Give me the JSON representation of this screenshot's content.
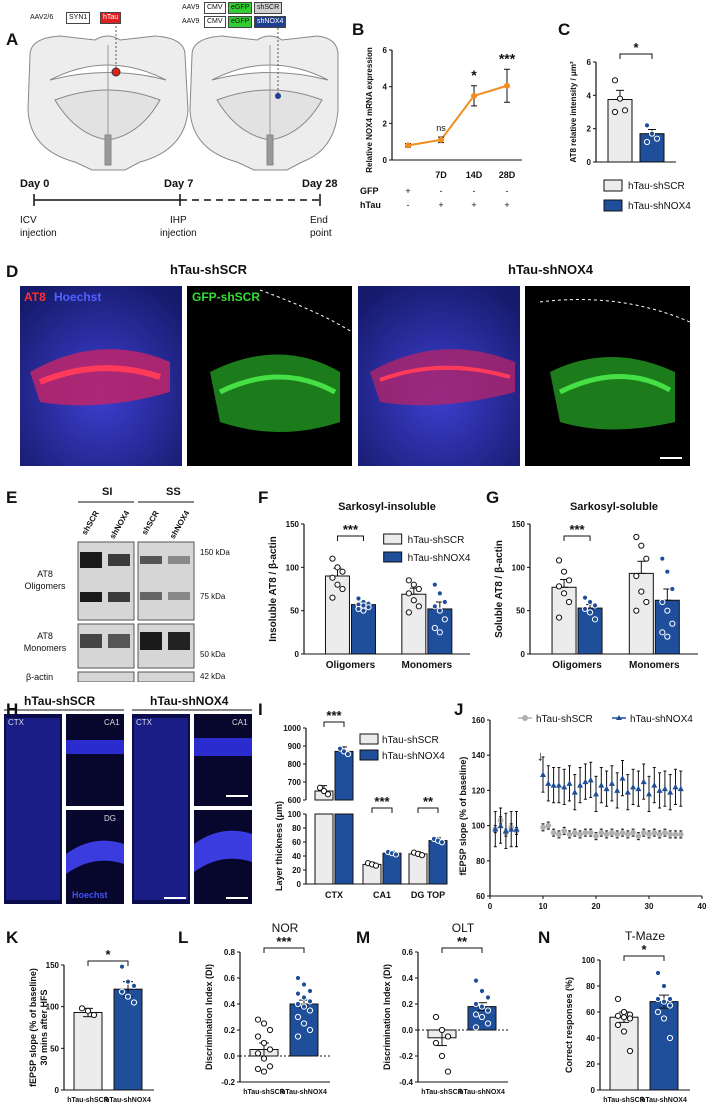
{
  "panels": {
    "A": {
      "letter": "A",
      "construct_left": {
        "vector": "AAV2/6",
        "promoter": "SYN1",
        "gene": "hTau"
      },
      "construct_right_1": {
        "vector": "AAV9",
        "promoter": "CMV",
        "reporter": "eGFP",
        "shrna": "shSCR"
      },
      "construct_right_2": {
        "vector": "AAV9",
        "promoter": "CMV",
        "reporter": "eGFP",
        "shrna": "shNOX4"
      },
      "timeline": [
        {
          "day": "Day 0",
          "event": "ICV\ninjection"
        },
        {
          "day": "Day 7",
          "event": "IHP\ninjection"
        },
        {
          "day": "Day 28",
          "event": "End\npoint"
        }
      ],
      "colors": {
        "htau": "#e02020",
        "gfp": "#33cc33",
        "shnox4": "#1f3f8f",
        "shscr": "#d0d0d0"
      }
    },
    "B": {
      "letter": "B"
    },
    "C": {
      "letter": "C"
    },
    "D": {
      "letter": "D",
      "group1": "hTau-shSCR",
      "group2": "hTau-shNOX4",
      "img1_label_a": "AT8",
      "img1_label_b": "Hoechst",
      "img2_label": "GFP-shSCR"
    },
    "E": {
      "letter": "E",
      "header_si": "SI",
      "header_ss": "SS",
      "lanes": [
        "shSCR",
        "shNOX4",
        "shSCR",
        "shNOX4"
      ],
      "row_labels": [
        "AT8\nOligomers",
        "AT8\nMonomers",
        "β-actin"
      ],
      "kda": [
        "150 kDa",
        "75 kDa",
        "50 kDa",
        "42 kDa"
      ]
    },
    "F": {
      "letter": "F"
    },
    "G": {
      "letter": "G"
    },
    "H": {
      "letter": "H",
      "group1": "hTau-shSCR",
      "group2": "hTau-shNOX4",
      "regions": [
        "CTX",
        "CA1",
        "DG"
      ],
      "stain": "Hoechst"
    },
    "I": {
      "letter": "I"
    },
    "J": {
      "letter": "J"
    },
    "K": {
      "letter": "K"
    },
    "L": {
      "letter": "L"
    },
    "M": {
      "letter": "M"
    },
    "N": {
      "letter": "N"
    }
  },
  "chart_data": [
    {
      "id": "B",
      "type": "line",
      "ylabel": "Relative NOX4 mRNA expression",
      "ylim": [
        0,
        6
      ],
      "yticks": [
        0,
        2,
        4,
        6
      ],
      "x": [
        "",
        "7D",
        "14D",
        "28D"
      ],
      "values": [
        0.8,
        1.1,
        3.5,
        4.05
      ],
      "errors": [
        0.1,
        0.15,
        0.55,
        0.9
      ],
      "significance": [
        "",
        "ns",
        "*",
        "***"
      ],
      "rows": [
        {
          "name": "GFP",
          "marks": [
            "+",
            "-",
            "-",
            "-"
          ]
        },
        {
          "name": "hTau",
          "marks": [
            "-",
            "+",
            "+",
            "+"
          ]
        }
      ],
      "color": "#f28c1e"
    },
    {
      "id": "C",
      "type": "bar",
      "ylabel": "AT8 relative intensity / μm²",
      "ylim": [
        0,
        6
      ],
      "yticks": [
        0,
        2,
        4,
        6
      ],
      "categories": [
        "hTau-shSCR",
        "hTau-shNOX4"
      ],
      "values": [
        3.75,
        1.7
      ],
      "errors": [
        0.55,
        0.25
      ],
      "points": [
        [
          4.9,
          3.8,
          3.1,
          3.0
        ],
        [
          2.2,
          1.7,
          1.4,
          1.2
        ]
      ],
      "significance": "*",
      "legend": [
        "hTau-shSCR",
        "hTau-shNOX4"
      ]
    },
    {
      "id": "F",
      "type": "bar",
      "title": "Sarkosyl-insoluble",
      "ylabel": "Insoluble AT8 / β-actin",
      "ylim": [
        0,
        150
      ],
      "yticks": [
        0,
        50,
        100,
        150
      ],
      "categories": [
        "Oligomers",
        "Monomers"
      ],
      "series": [
        {
          "name": "hTau-shSCR",
          "values": [
            90,
            69
          ],
          "errors": [
            9,
            7
          ],
          "points": [
            [
              110,
              100,
              95,
              88,
              80,
              75,
              65
            ],
            [
              85,
              80,
              75,
              70,
              62,
              55,
              48
            ]
          ]
        },
        {
          "name": "hTau-shNOX4",
          "values": [
            57,
            52
          ],
          "errors": [
            3,
            8
          ],
          "points": [
            [
              64,
              60,
              58,
              57,
              56,
              54,
              52,
              50
            ],
            [
              80,
              70,
              60,
              55,
              50,
              40,
              30,
              25
            ]
          ]
        }
      ],
      "significance": [
        {
          "category": "Oligomers",
          "label": "***"
        }
      ]
    },
    {
      "id": "G",
      "type": "bar",
      "title": "Sarkosyl-soluble",
      "ylabel": "Soluble AT8 / β-actin",
      "ylim": [
        0,
        150
      ],
      "yticks": [
        0,
        50,
        100,
        150
      ],
      "categories": [
        "Oligomers",
        "Monomers"
      ],
      "series": [
        {
          "name": "hTau-shSCR",
          "values": [
            77,
            93
          ],
          "errors": [
            9,
            14
          ],
          "points": [
            [
              108,
              95,
              85,
              78,
              70,
              60,
              42
            ],
            [
              135,
              125,
              110,
              90,
              72,
              60,
              50
            ]
          ]
        },
        {
          "name": "hTau-shNOX4",
          "values": [
            53,
            62
          ],
          "errors": [
            4,
            13
          ],
          "points": [
            [
              65,
              60,
              56,
              52,
              48,
              40
            ],
            [
              110,
              95,
              75,
              60,
              50,
              35,
              25,
              20
            ]
          ]
        }
      ],
      "significance": [
        {
          "category": "Oligomers",
          "label": "***"
        }
      ]
    },
    {
      "id": "I",
      "type": "bar",
      "ylabel": "Layer thickness (μm)",
      "ylim_upper": [
        600,
        1000
      ],
      "yticks_upper": [
        600,
        700,
        800,
        900,
        1000
      ],
      "ylim_lower": [
        0,
        100
      ],
      "yticks_lower": [
        0,
        20,
        40,
        60,
        80,
        100
      ],
      "categories": [
        "CTX",
        "CA1",
        "DG TOP"
      ],
      "series": [
        {
          "name": "hTau-shSCR",
          "values": [
            650,
            28,
            43
          ],
          "errors": [
            30,
            3,
            3
          ]
        },
        {
          "name": "hTau-shNOX4",
          "values": [
            870,
            44,
            62
          ],
          "errors": [
            25,
            3,
            4
          ]
        }
      ],
      "significance": [
        "***",
        "***",
        "**"
      ]
    },
    {
      "id": "J",
      "type": "scatter",
      "ylabel": "fEPSP slope (% of baseline)",
      "xlim": [
        0,
        40
      ],
      "ylim": [
        60,
        160
      ],
      "xticks": [
        0,
        10,
        20,
        30,
        40
      ],
      "yticks": [
        60,
        80,
        100,
        120,
        140,
        160
      ],
      "series": [
        {
          "name": "hTau-shSCR",
          "color": "#b0b0b0",
          "x": [
            1,
            2,
            3,
            4,
            5,
            10,
            11,
            12,
            13,
            14,
            15,
            16,
            17,
            18,
            19,
            20,
            21,
            22,
            23,
            24,
            25,
            26,
            27,
            28,
            29,
            30,
            31,
            32,
            33,
            34,
            35,
            36
          ],
          "y": [
            98,
            103,
            96,
            99,
            97,
            99,
            100,
            96,
            95,
            97,
            95,
            96,
            95,
            96,
            96,
            94,
            96,
            95,
            96,
            95,
            96,
            95,
            96,
            94,
            96,
            95,
            96,
            95,
            96,
            95,
            95,
            95
          ]
        },
        {
          "name": "hTau-shNOX4",
          "color": "#1f4e9a",
          "x": [
            1,
            2,
            3,
            4,
            5,
            10,
            11,
            12,
            13,
            14,
            15,
            16,
            17,
            18,
            19,
            20,
            21,
            22,
            23,
            24,
            25,
            26,
            27,
            28,
            29,
            30,
            31,
            32,
            33,
            34,
            35,
            36
          ],
          "y": [
            98,
            100,
            97,
            98,
            98,
            129,
            124,
            123,
            123,
            122,
            124,
            119,
            123,
            125,
            126,
            118,
            123,
            121,
            124,
            120,
            127,
            119,
            122,
            121,
            125,
            118,
            123,
            120,
            121,
            119,
            122,
            121
          ]
        }
      ],
      "annotation": "↓"
    },
    {
      "id": "K",
      "type": "bar",
      "ylabel": "fEPSP slope (% of baseline)\n30 mins after HFS",
      "ylim": [
        0,
        150
      ],
      "yticks": [
        0,
        50,
        100,
        150
      ],
      "categories": [
        "hTau-shSCR",
        "hTau-shNOX4"
      ],
      "values": [
        93,
        121
      ],
      "errors": [
        5,
        9
      ],
      "points": [
        [
          98,
          95,
          90
        ],
        [
          148,
          130,
          125,
          118,
          112,
          105
        ]
      ],
      "significance": "*"
    },
    {
      "id": "L",
      "type": "bar",
      "title": "NOR",
      "ylabel": "Discrimination Index (DI)",
      "ylim": [
        -0.2,
        0.8
      ],
      "yticks": [
        -0.2,
        0.0,
        0.2,
        0.4,
        0.6,
        0.8
      ],
      "categories": [
        "hTau-shSCR",
        "hTau-shNOX4"
      ],
      "values": [
        0.05,
        0.4
      ],
      "errors": [
        0.05,
        0.03
      ],
      "points": [
        [
          0.28,
          0.25,
          0.2,
          0.15,
          0.1,
          0.05,
          0.02,
          -0.02,
          -0.08,
          -0.1,
          -0.12
        ],
        [
          0.6,
          0.55,
          0.5,
          0.48,
          0.45,
          0.42,
          0.4,
          0.38,
          0.35,
          0.3,
          0.25,
          0.2,
          0.15
        ]
      ],
      "significance": "***"
    },
    {
      "id": "M",
      "type": "bar",
      "title": "OLT",
      "ylabel": "Discrimination Index (DI)",
      "ylim": [
        -0.4,
        0.6
      ],
      "yticks": [
        -0.4,
        -0.2,
        0.0,
        0.2,
        0.4,
        0.6
      ],
      "categories": [
        "hTau-shSCR",
        "hTau-shNOX4"
      ],
      "values": [
        -0.06,
        0.18
      ],
      "errors": [
        0.06,
        0.03
      ],
      "points": [
        [
          0.1,
          0.0,
          -0.05,
          -0.1,
          -0.2,
          -0.32
        ],
        [
          0.38,
          0.3,
          0.25,
          0.2,
          0.18,
          0.15,
          0.12,
          0.1,
          0.05,
          0.02
        ]
      ],
      "significance": "**"
    },
    {
      "id": "N",
      "type": "bar",
      "title": "T-Maze",
      "ylabel": "Correct responses (%)",
      "ylim": [
        0,
        100
      ],
      "yticks": [
        0,
        20,
        40,
        60,
        80,
        100
      ],
      "categories": [
        "hTau-shSCR",
        "hTau-shNOX4"
      ],
      "values": [
        56,
        68
      ],
      "errors": [
        4,
        5
      ],
      "points": [
        [
          70,
          60,
          58,
          57,
          56,
          55,
          50,
          45,
          30
        ],
        [
          90,
          80,
          70,
          70,
          68,
          65,
          60,
          55,
          40
        ]
      ],
      "significance": "*"
    }
  ]
}
